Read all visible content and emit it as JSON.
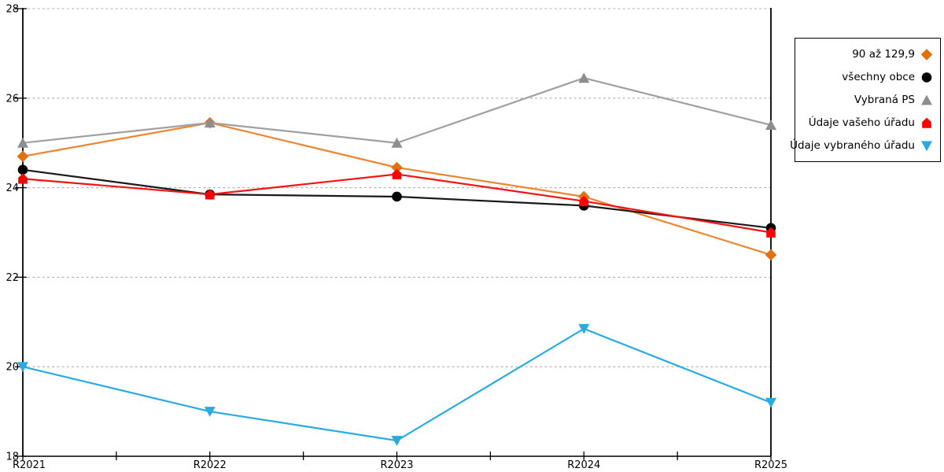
{
  "chart_data": {
    "type": "line",
    "title": "",
    "xlabel": "",
    "ylabel": "",
    "categories": [
      "R2021",
      "R2022",
      "R2023",
      "R2024",
      "R2025"
    ],
    "series": [
      {
        "name": "90 až 129,9",
        "marker": "diamond",
        "marker_color": "#E1700F",
        "line_color": "#ED8633",
        "values": [
          24.7,
          25.45,
          24.45,
          23.8,
          22.5
        ]
      },
      {
        "name": "všechny obce",
        "marker": "circle",
        "marker_color": "#000000",
        "line_color": "#1A1A1A",
        "values": [
          24.4,
          23.85,
          23.8,
          23.6,
          23.1
        ]
      },
      {
        "name": "Vybraná PS",
        "marker": "triangle-up",
        "marker_color": "#8E8E8E",
        "line_color": "#A0A0A0",
        "values": [
          25.0,
          25.45,
          25.0,
          26.45,
          25.4
        ]
      },
      {
        "name": "Údaje vašeho úřadu",
        "marker": "pentagon",
        "marker_color": "#FF0000",
        "line_color": "#F51414",
        "values": [
          24.2,
          23.85,
          24.3,
          23.7,
          23.0
        ]
      },
      {
        "name": "Údaje vybraného úřadu",
        "marker": "triangle-down",
        "marker_color": "#29ABE2",
        "line_color": "#29ABE2",
        "values": [
          20.0,
          19.0,
          18.35,
          20.85,
          19.2
        ]
      }
    ],
    "ylim": [
      18,
      28
    ],
    "yticks": [
      "18",
      "20",
      "22",
      "24",
      "26",
      "28"
    ],
    "grid": "horizontal-dashed",
    "grid_color": "#B0B0B0",
    "axis_color": "#000000",
    "legend_position": "right"
  }
}
